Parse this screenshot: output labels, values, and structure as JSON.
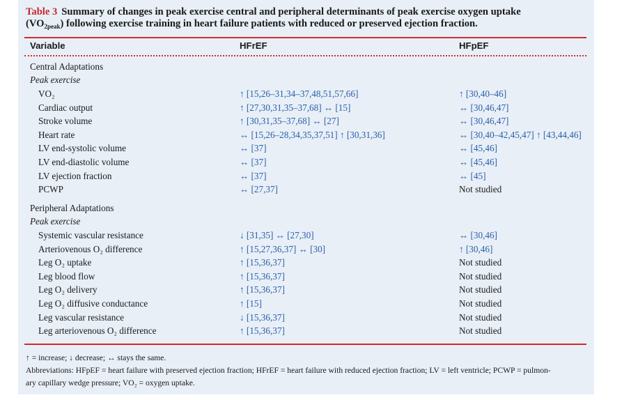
{
  "caption": {
    "label": "Table 3",
    "line1": "Summary of changes in peak exercise central and peripheral determinants of peak exercise oxygen uptake",
    "line2_pre": "(VO",
    "line2_sub": "2peak",
    "line2_post": ") following exercise training in heart failure patients with reduced or preserved ejection fraction."
  },
  "header": {
    "col1": "Variable",
    "col2": "HFrEF",
    "col3": "HFpEF"
  },
  "central": {
    "title": "Central Adaptations",
    "subtitle": "Peak exercise",
    "rows": [
      {
        "name": "VO₂",
        "hfref": "↑ [15,26–31,34–37,48,51,57,66]",
        "hfpef": "↑ [30,40–46]"
      },
      {
        "name": "Cardiac output",
        "hfref": "↑ [27,30,31,35–37,68] ↔ [15]",
        "hfpef": "↔ [30,46,47]"
      },
      {
        "name": "Stroke volume",
        "hfref": "↑ [30,31,35–37,68] ↔ [27]",
        "hfpef": "↔ [30,46,47]"
      },
      {
        "name": "Heart rate",
        "hfref": "↔ [15,26–28,34,35,37,51] ↑ [30,31,36]",
        "hfpef": "↔ [30,40–42,45,47] ↑ [43,44,46]"
      },
      {
        "name": "LV end-systolic volume",
        "hfref": "↔ [37]",
        "hfpef": "↔ [45,46]"
      },
      {
        "name": "LV end-diastolic volume",
        "hfref": "↔ [37]",
        "hfpef": "↔ [45,46]"
      },
      {
        "name": "LV ejection fraction",
        "hfref": "↔ [37]",
        "hfpef": "↔ [45]"
      },
      {
        "name": "PCWP",
        "hfref": "↔ [27,37]",
        "hfpef": "Not studied"
      }
    ]
  },
  "peripheral": {
    "title": "Peripheral Adaptations",
    "subtitle": "Peak exercise",
    "rows": [
      {
        "name": "Systemic vascular resistance",
        "hfref": "↓ [31,35] ↔ [27,30]",
        "hfpef": "↔ [30,46]"
      },
      {
        "name": "Arteriovenous O₂ difference",
        "hfref": "↑ [15,27,36,37] ↔ [30]",
        "hfpef": "↑ [30,46]"
      },
      {
        "name": "Leg O₂ uptake",
        "hfref": "↑ [15,36,37]",
        "hfpef": "Not studied"
      },
      {
        "name": "Leg blood flow",
        "hfref": "↑ [15,36,37]",
        "hfpef": "Not studied"
      },
      {
        "name": "Leg O₂ delivery",
        "hfref": "↑ [15,36,37]",
        "hfpef": "Not studied"
      },
      {
        "name": "Leg O₂ diffusive conductance",
        "hfref": "↑ [15]",
        "hfpef": "Not studied"
      },
      {
        "name": "Leg vascular resistance",
        "hfref": "↓ [15,36,37]",
        "hfpef": "Not studied"
      },
      {
        "name": "Leg arteriovenous O₂ difference",
        "hfref": "↑ [15,36,37]",
        "hfpef": "Not studied"
      }
    ]
  },
  "footnotes": {
    "legend": "↑ = increase; ↓ decrease; ↔ stays the same.",
    "abbrev1": "Abbreviations: HFpEF = heart failure with preserved ejection fraction; HFrEF = heart failure with reduced ejection fraction; LV = left ventricle; PCWP = pulmon-",
    "abbrev2": "ary capillary wedge pressure; VO₂ = oxygen uptake."
  },
  "colors": {
    "accent_red": "#d12b2b",
    "background": "#e8eff7",
    "reference_blue": "#2a5fa8"
  }
}
